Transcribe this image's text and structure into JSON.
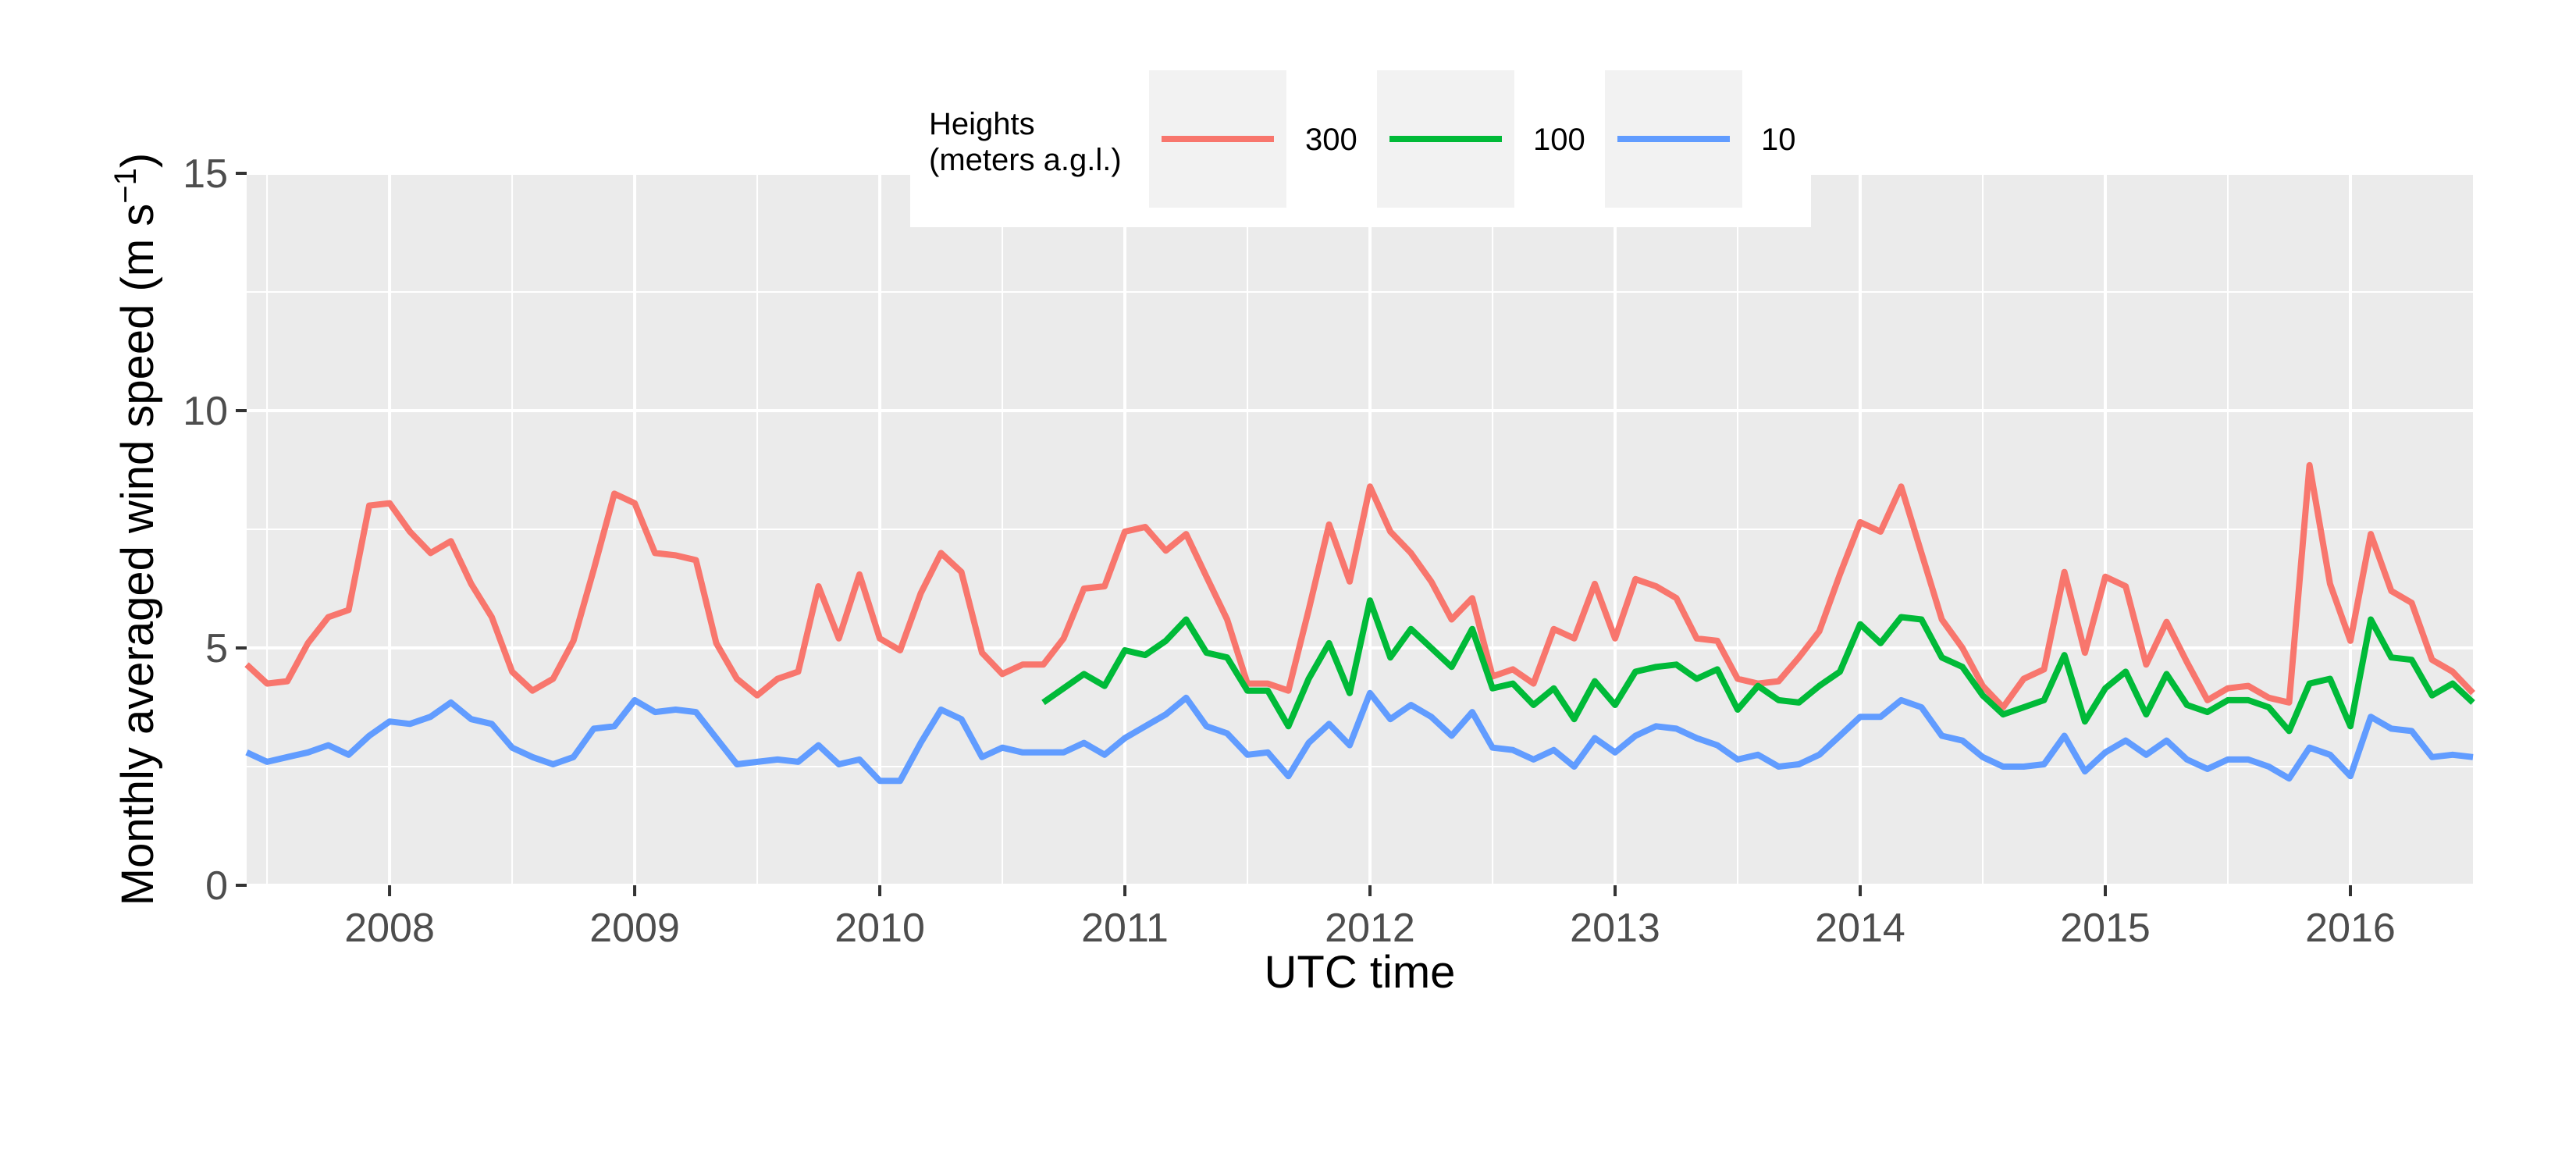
{
  "chart_data": {
    "type": "line",
    "xlabel": "UTC time",
    "ylabel_main": "Monthly averaged wind speed (m s",
    "ylabel_sup": "−1",
    "ylabel_close": ")",
    "ylim": [
      0,
      15
    ],
    "yticks": [
      0,
      5,
      10,
      15
    ],
    "ytick_labels": [
      "0",
      "5",
      "10",
      "15"
    ],
    "xlim": [
      2007.417,
      2016.5
    ],
    "xticks": [
      2008,
      2009,
      2010,
      2011,
      2012,
      2013,
      2014,
      2015,
      2016
    ],
    "xtick_labels": [
      "2008",
      "2009",
      "2010",
      "2011",
      "2012",
      "2013",
      "2014",
      "2015",
      "2016"
    ],
    "grid": true,
    "legend": {
      "position": "top",
      "title_line1": "Heights",
      "title_line2": "(meters a.g.l.)"
    },
    "series": [
      {
        "name": "300",
        "color": "#F8766D",
        "x": [
          2007.417,
          2007.5,
          2007.583,
          2007.667,
          2007.75,
          2007.833,
          2007.917,
          2008.0,
          2008.083,
          2008.167,
          2008.25,
          2008.333,
          2008.417,
          2008.5,
          2008.583,
          2008.667,
          2008.75,
          2008.833,
          2008.917,
          2009.0,
          2009.083,
          2009.167,
          2009.25,
          2009.333,
          2009.417,
          2009.5,
          2009.583,
          2009.667,
          2009.75,
          2009.833,
          2009.917,
          2010.0,
          2010.083,
          2010.167,
          2010.25,
          2010.333,
          2010.417,
          2010.5,
          2010.583,
          2010.667,
          2010.75,
          2010.833,
          2010.917,
          2011.0,
          2011.083,
          2011.167,
          2011.25,
          2011.333,
          2011.417,
          2011.5,
          2011.583,
          2011.667,
          2011.75,
          2011.833,
          2011.917,
          2012.0,
          2012.083,
          2012.167,
          2012.25,
          2012.333,
          2012.417,
          2012.5,
          2012.583,
          2012.667,
          2012.75,
          2012.833,
          2012.917,
          2013.0,
          2013.083,
          2013.167,
          2013.25,
          2013.333,
          2013.417,
          2013.5,
          2013.583,
          2013.667,
          2013.75,
          2013.833,
          2013.917,
          2014.0,
          2014.083,
          2014.167,
          2014.25,
          2014.333,
          2014.417,
          2014.5,
          2014.583,
          2014.667,
          2014.75,
          2014.833,
          2014.917,
          2015.0,
          2015.083,
          2015.167,
          2015.25,
          2015.333,
          2015.417,
          2015.5,
          2015.583,
          2015.667,
          2015.75,
          2015.833,
          2015.917,
          2016.0,
          2016.083,
          2016.167,
          2016.25,
          2016.333,
          2016.417,
          2016.5
        ],
        "values": [
          4.65,
          4.25,
          4.3,
          5.1,
          5.65,
          5.8,
          8.0,
          8.05,
          7.45,
          7.0,
          7.25,
          6.35,
          5.65,
          4.5,
          4.1,
          4.35,
          5.15,
          6.65,
          8.25,
          8.05,
          7.0,
          6.95,
          6.85,
          5.1,
          4.35,
          4.0,
          4.35,
          4.5,
          6.3,
          5.2,
          6.55,
          5.2,
          4.95,
          6.15,
          7.0,
          6.6,
          4.9,
          4.45,
          4.65,
          4.65,
          5.2,
          6.25,
          6.3,
          7.45,
          7.55,
          7.05,
          7.4,
          6.5,
          5.6,
          4.25,
          4.25,
          4.1,
          5.8,
          7.6,
          6.4,
          8.4,
          7.45,
          7.0,
          6.4,
          5.6,
          6.05,
          4.4,
          4.55,
          4.25,
          5.4,
          5.2,
          6.35,
          5.2,
          6.45,
          6.3,
          6.05,
          5.2,
          5.15,
          4.35,
          4.25,
          4.3,
          4.8,
          5.35,
          6.55,
          7.65,
          7.45,
          8.4,
          7.0,
          5.6,
          5.0,
          4.2,
          3.75,
          4.35,
          4.55,
          6.6,
          4.9,
          6.5,
          6.3,
          4.65,
          5.55,
          4.7,
          3.9,
          4.15,
          4.2,
          3.95,
          3.85,
          8.85,
          6.35,
          5.15,
          7.4,
          6.2,
          5.95,
          4.75,
          4.5,
          4.05
        ]
      },
      {
        "name": "100",
        "color": "#00BA38",
        "x": [
          2010.667,
          2010.75,
          2010.833,
          2010.917,
          2011.0,
          2011.083,
          2011.167,
          2011.25,
          2011.333,
          2011.417,
          2011.5,
          2011.583,
          2011.667,
          2011.75,
          2011.833,
          2011.917,
          2012.0,
          2012.083,
          2012.167,
          2012.25,
          2012.333,
          2012.417,
          2012.5,
          2012.583,
          2012.667,
          2012.75,
          2012.833,
          2012.917,
          2013.0,
          2013.083,
          2013.167,
          2013.25,
          2013.333,
          2013.417,
          2013.5,
          2013.583,
          2013.667,
          2013.75,
          2013.833,
          2013.917,
          2014.0,
          2014.083,
          2014.167,
          2014.25,
          2014.333,
          2014.417,
          2014.5,
          2014.583,
          2014.667,
          2014.75,
          2014.833,
          2014.917,
          2015.0,
          2015.083,
          2015.167,
          2015.25,
          2015.333,
          2015.417,
          2015.5,
          2015.583,
          2015.667,
          2015.75,
          2015.833,
          2015.917,
          2016.0,
          2016.083,
          2016.167,
          2016.25,
          2016.333,
          2016.417,
          2016.5
        ],
        "values": [
          3.85,
          4.15,
          4.45,
          4.2,
          4.95,
          4.85,
          5.15,
          5.6,
          4.9,
          4.8,
          4.1,
          4.1,
          3.35,
          4.35,
          5.1,
          4.05,
          6.0,
          4.8,
          5.4,
          5.0,
          4.6,
          5.4,
          4.15,
          4.25,
          3.8,
          4.15,
          3.5,
          4.3,
          3.8,
          4.5,
          4.6,
          4.65,
          4.35,
          4.55,
          3.7,
          4.2,
          3.9,
          3.85,
          4.2,
          4.5,
          5.5,
          5.1,
          5.65,
          5.6,
          4.8,
          4.6,
          4.0,
          3.6,
          3.75,
          3.9,
          4.85,
          3.45,
          4.15,
          4.5,
          3.6,
          4.45,
          3.8,
          3.65,
          3.9,
          3.9,
          3.75,
          3.25,
          4.25,
          4.35,
          3.35,
          5.6,
          4.8,
          4.75,
          4.0,
          4.25,
          3.85
        ]
      },
      {
        "name": "10",
        "color": "#619CFF",
        "x": [
          2007.417,
          2007.5,
          2007.583,
          2007.667,
          2007.75,
          2007.833,
          2007.917,
          2008.0,
          2008.083,
          2008.167,
          2008.25,
          2008.333,
          2008.417,
          2008.5,
          2008.583,
          2008.667,
          2008.75,
          2008.833,
          2008.917,
          2009.0,
          2009.083,
          2009.167,
          2009.25,
          2009.333,
          2009.417,
          2009.5,
          2009.583,
          2009.667,
          2009.75,
          2009.833,
          2009.917,
          2010.0,
          2010.083,
          2010.167,
          2010.25,
          2010.333,
          2010.417,
          2010.5,
          2010.583,
          2010.667,
          2010.75,
          2010.833,
          2010.917,
          2011.0,
          2011.083,
          2011.167,
          2011.25,
          2011.333,
          2011.417,
          2011.5,
          2011.583,
          2011.667,
          2011.75,
          2011.833,
          2011.917,
          2012.0,
          2012.083,
          2012.167,
          2012.25,
          2012.333,
          2012.417,
          2012.5,
          2012.583,
          2012.667,
          2012.75,
          2012.833,
          2012.917,
          2013.0,
          2013.083,
          2013.167,
          2013.25,
          2013.333,
          2013.417,
          2013.5,
          2013.583,
          2013.667,
          2013.75,
          2013.833,
          2013.917,
          2014.0,
          2014.083,
          2014.167,
          2014.25,
          2014.333,
          2014.417,
          2014.5,
          2014.583,
          2014.667,
          2014.75,
          2014.833,
          2014.917,
          2015.0,
          2015.083,
          2015.167,
          2015.25,
          2015.333,
          2015.417,
          2015.5,
          2015.583,
          2015.667,
          2015.75,
          2015.833,
          2015.917,
          2016.0,
          2016.083,
          2016.167,
          2016.25,
          2016.333,
          2016.417,
          2016.5
        ],
        "values": [
          2.8,
          2.6,
          2.7,
          2.8,
          2.95,
          2.75,
          3.15,
          3.45,
          3.4,
          3.55,
          3.85,
          3.5,
          3.4,
          2.9,
          2.7,
          2.55,
          2.7,
          3.3,
          3.35,
          3.9,
          3.65,
          3.7,
          3.65,
          3.1,
          2.55,
          2.6,
          2.65,
          2.6,
          2.95,
          2.55,
          2.65,
          2.2,
          2.2,
          3.0,
          3.7,
          3.5,
          2.7,
          2.9,
          2.8,
          2.8,
          2.8,
          3.0,
          2.75,
          3.1,
          3.35,
          3.6,
          3.95,
          3.35,
          3.2,
          2.75,
          2.8,
          2.3,
          3.0,
          3.4,
          2.95,
          4.05,
          3.5,
          3.8,
          3.55,
          3.15,
          3.65,
          2.9,
          2.85,
          2.65,
          2.85,
          2.5,
          3.1,
          2.8,
          3.15,
          3.35,
          3.3,
          3.1,
          2.95,
          2.65,
          2.75,
          2.5,
          2.55,
          2.75,
          3.15,
          3.55,
          3.55,
          3.9,
          3.75,
          3.15,
          3.05,
          2.7,
          2.5,
          2.5,
          2.55,
          3.15,
          2.4,
          2.8,
          3.05,
          2.75,
          3.05,
          2.65,
          2.45,
          2.65,
          2.65,
          2.5,
          2.25,
          2.9,
          2.75,
          2.3,
          3.55,
          3.3,
          3.25,
          2.7,
          2.75,
          2.7
        ]
      }
    ]
  }
}
